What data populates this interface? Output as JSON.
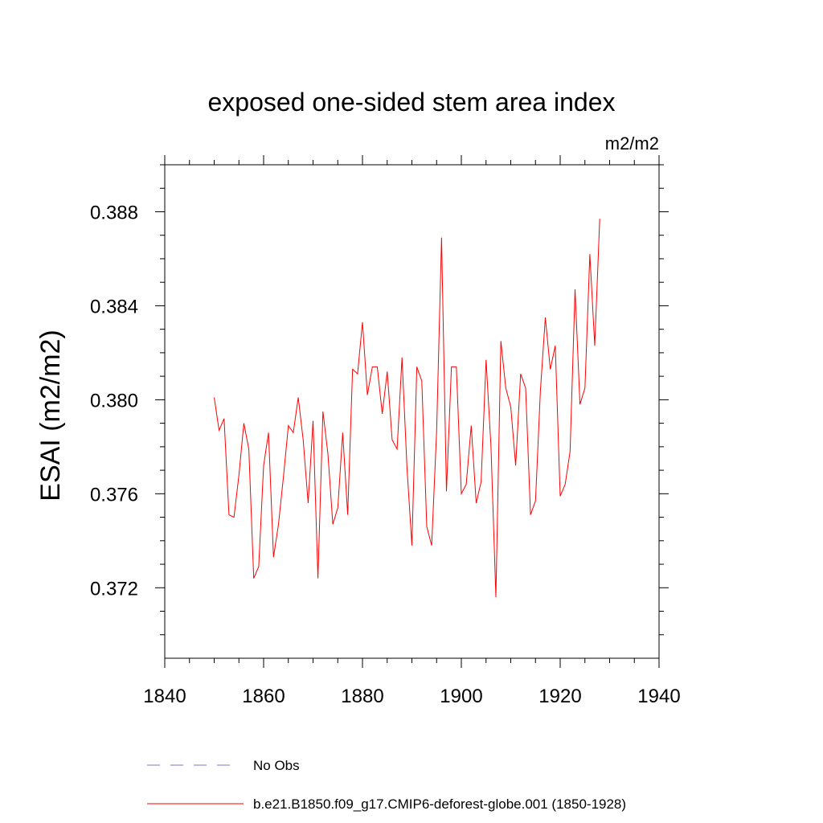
{
  "chart_data": {
    "type": "line",
    "title": "exposed one-sided stem area index",
    "units": "m2/m2",
    "ylabel": "ESAI  (m2/m2)",
    "xlabel": "",
    "xlim": [
      1840,
      1940
    ],
    "ylim": [
      0.369,
      0.39
    ],
    "x_ticks": [
      1840,
      1860,
      1880,
      1900,
      1920,
      1940
    ],
    "x_tick_labels": [
      "1840",
      "1860",
      "1880",
      "1900",
      "1920",
      "1940"
    ],
    "y_ticks": [
      0.372,
      0.376,
      0.38,
      0.384,
      0.388
    ],
    "y_tick_labels": [
      "0.372",
      "0.376",
      "0.380",
      "0.384",
      "0.388"
    ],
    "grid": false,
    "legend_position": "bottom",
    "series": [
      {
        "name": "b.e21.B1850.f09_g17.CMIP6-deforest-globe.001 (1850-1928)",
        "color": "#ff0000",
        "style": "solid",
        "x": [
          1850,
          1851,
          1852,
          1853,
          1854,
          1855,
          1856,
          1857,
          1858,
          1859,
          1860,
          1861,
          1862,
          1863,
          1864,
          1865,
          1866,
          1867,
          1868,
          1869,
          1870,
          1871,
          1872,
          1873,
          1874,
          1875,
          1876,
          1877,
          1878,
          1879,
          1880,
          1881,
          1882,
          1883,
          1884,
          1885,
          1886,
          1887,
          1888,
          1889,
          1890,
          1891,
          1892,
          1893,
          1894,
          1895,
          1896,
          1897,
          1898,
          1899,
          1900,
          1901,
          1902,
          1903,
          1904,
          1905,
          1906,
          1907,
          1908,
          1909,
          1910,
          1911,
          1912,
          1913,
          1914,
          1915,
          1916,
          1917,
          1918,
          1919,
          1920,
          1921,
          1922,
          1923,
          1924,
          1925,
          1926,
          1927,
          1928
        ],
        "values": [
          0.3801,
          0.3787,
          0.3792,
          0.3751,
          0.375,
          0.3768,
          0.379,
          0.3779,
          0.3724,
          0.3729,
          0.3772,
          0.3786,
          0.3733,
          0.3747,
          0.3767,
          0.3789,
          0.3786,
          0.3801,
          0.3783,
          0.3756,
          0.3791,
          0.3724,
          0.3795,
          0.3777,
          0.3747,
          0.3754,
          0.3786,
          0.3751,
          0.3813,
          0.3811,
          0.3833,
          0.3802,
          0.3814,
          0.3814,
          0.3794,
          0.3812,
          0.3783,
          0.3779,
          0.3818,
          0.3771,
          0.3738,
          0.3814,
          0.3808,
          0.3746,
          0.3738,
          0.3787,
          0.3869,
          0.3761,
          0.3814,
          0.3814,
          0.376,
          0.3764,
          0.3789,
          0.3756,
          0.3765,
          0.3817,
          0.378,
          0.3716,
          0.3825,
          0.3805,
          0.3797,
          0.3772,
          0.3811,
          0.3805,
          0.3751,
          0.3757,
          0.3804,
          0.3835,
          0.3813,
          0.3823,
          0.3759,
          0.3764,
          0.3778,
          0.3847,
          0.3798,
          0.3805,
          0.3862,
          0.3823,
          0.3877
        ]
      },
      {
        "name": "No Obs",
        "color": "#7777cc",
        "style": "dashed",
        "x": [],
        "values": []
      }
    ]
  }
}
